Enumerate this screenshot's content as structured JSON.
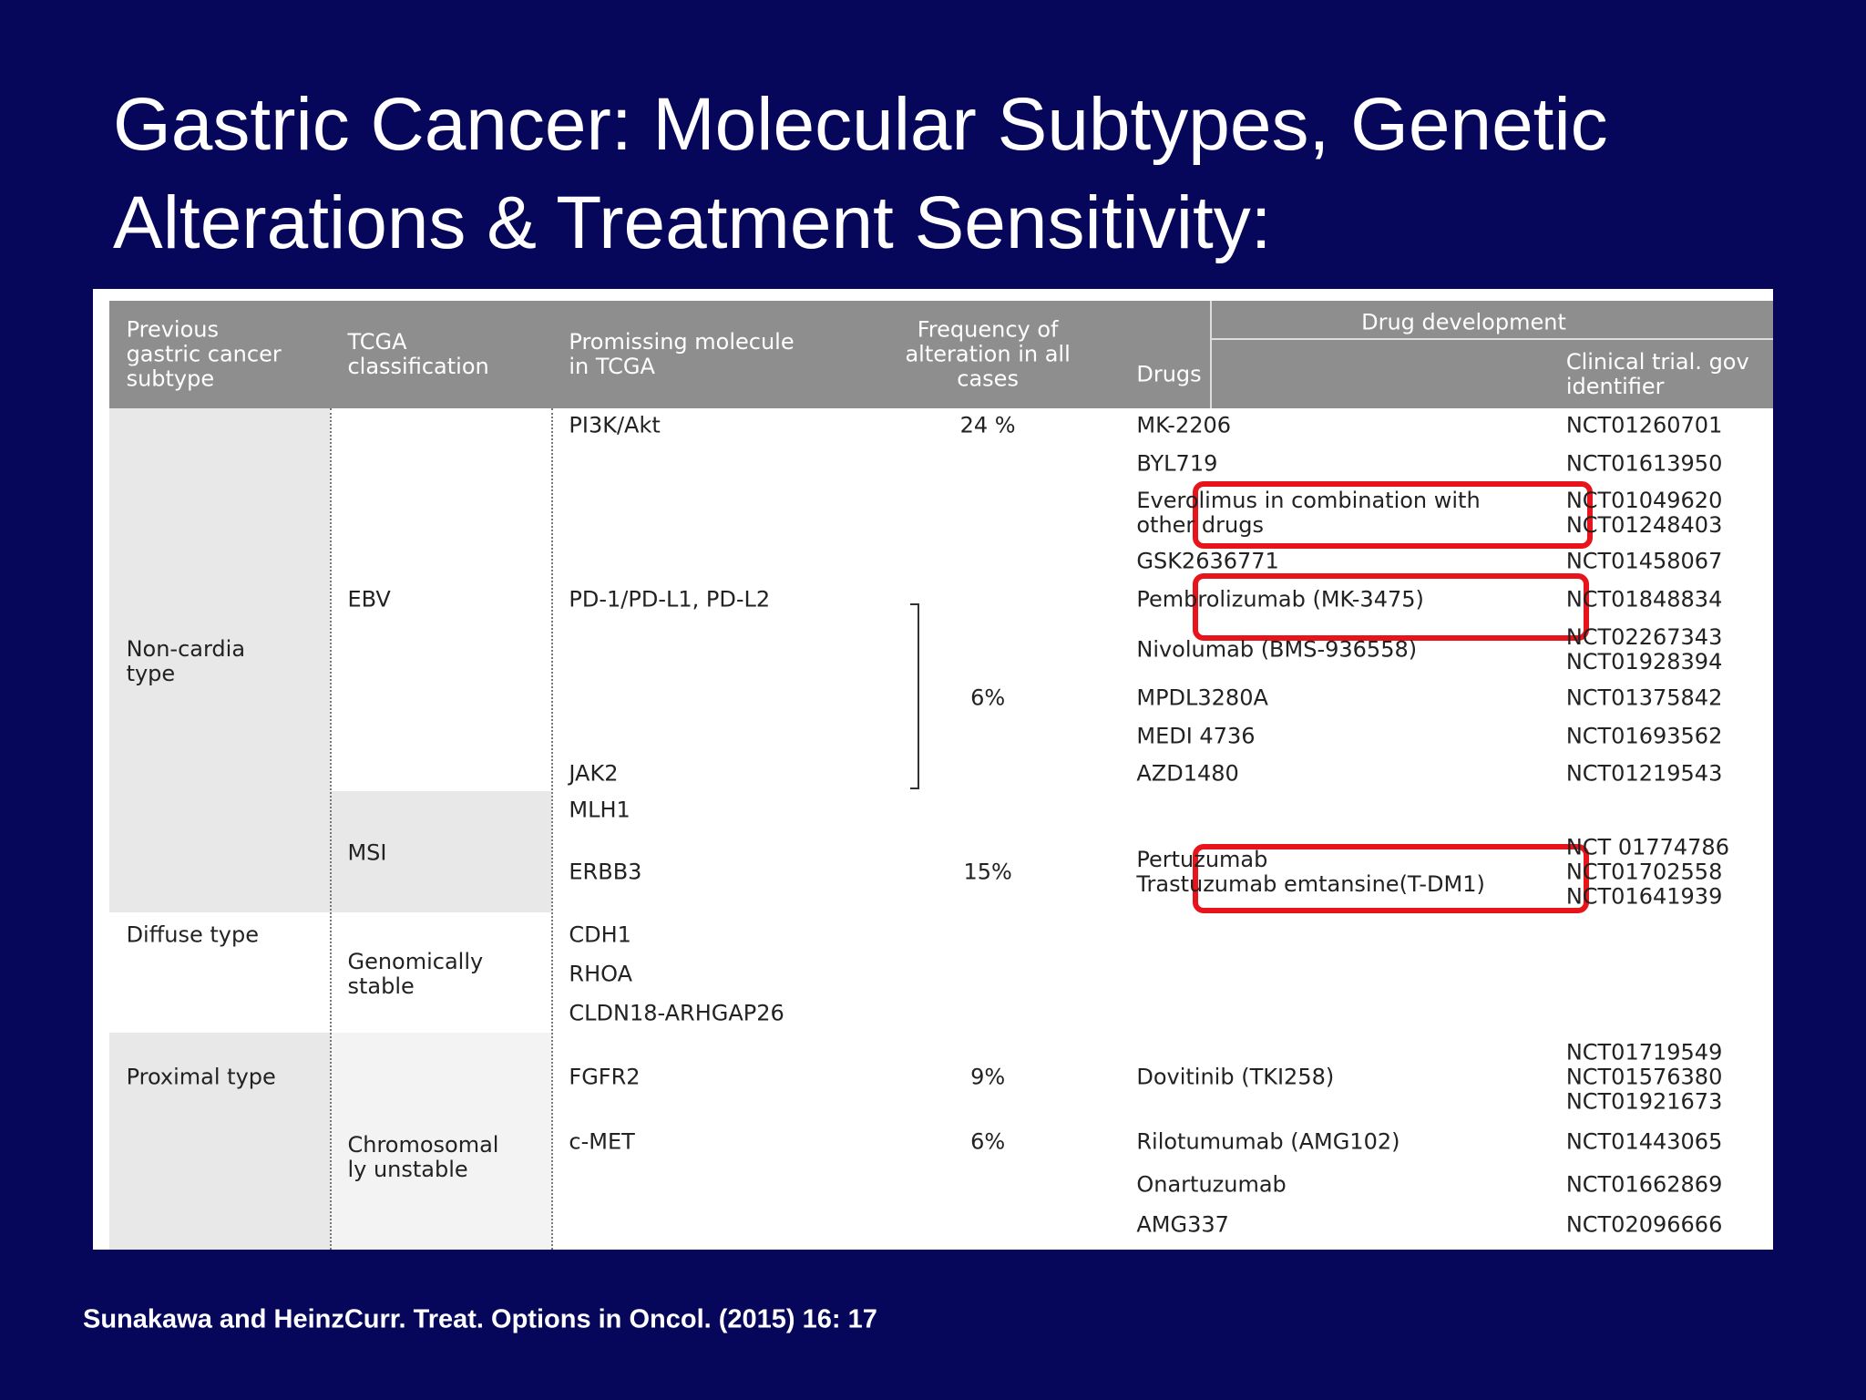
{
  "title": [
    "Gastric Cancer: Molecular Subtypes, Genetic",
    "Alterations & Treatment Sensitivity:"
  ],
  "table": {
    "header": {
      "previous_subtype": "Previous\ngastric cancer\nsubtype",
      "tcga": "TCGA\nclassification",
      "molecule": "Promissing molecule\nin TCGA",
      "frequency": "Frequency of\nalteration in all\ncases",
      "drug_development": "Drug development",
      "drugs": "Drugs",
      "trial": "Clinical trial. gov\nidentifier"
    },
    "subtypes": [
      "Non-cardia\ntype",
      "Diffuse type",
      "Proximal type"
    ],
    "classifications": [
      "EBV",
      "MSI",
      "Genomically\nstable",
      "Chromosomal\nly unstable"
    ],
    "molecules": [
      "PI3K/Akt",
      "PD-1/PD-L1, PD-L2",
      "JAK2",
      "MLH1",
      "ERBB3",
      "CDH1",
      "RHOA",
      "CLDN18-ARHGAP26",
      "FGFR2",
      "c-MET"
    ],
    "frequencies": [
      "24 %",
      "6%",
      "15%",
      "9%",
      "6%"
    ],
    "drugs": [
      "MK-2206",
      "BYL719",
      "Everolimus in combination with\nother drugs",
      "GSK2636771",
      "Pembrolizumab (MK-3475)",
      "Nivolumab (BMS-936558)",
      "MPDL3280A",
      "MEDI 4736",
      "AZD1480",
      "Pertuzumab\nTrastuzumab emtansine(T-DM1)",
      "Dovitinib (TKI258)",
      "Rilotumumab (AMG102)",
      "Onartuzumab",
      "AMG337"
    ],
    "trials": [
      "NCT01260701",
      "NCT01613950",
      "NCT01049620\nNCT01248403",
      "NCT01458067",
      "NCT01848834",
      "NCT02267343\nNCT01928394",
      "NCT01375842",
      "NCT01693562",
      "NCT01219543",
      "NCT 01774786\nNCT01702558\nNCT01641939",
      "NCT01719549\nNCT01576380\nNCT01921673",
      "NCT01443065",
      "NCT01662869",
      "NCT02096666"
    ]
  },
  "citation": "Sunakawa and HeinzCurr. Treat. Options in Oncol. (2015) 16: 17"
}
